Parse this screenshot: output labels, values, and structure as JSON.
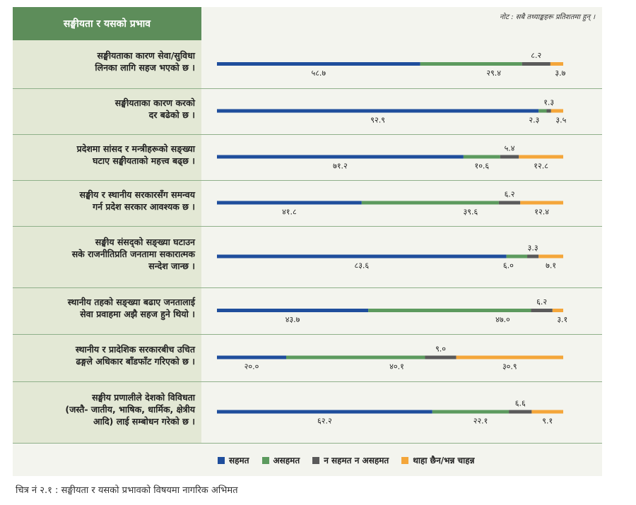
{
  "header": {
    "title": "सङ्घीयता र यसको प्रभाव"
  },
  "note": "नोट : सबै तथ्याङ्कहरू प्रतिशतमा हुन् ।",
  "caption": "चित्र नं २.१ : सङ्घीयता र यसको प्रभावको विषयमा नागरिक अभिमत",
  "legend": [
    {
      "label": "सहमत",
      "color": "#1f4e9c"
    },
    {
      "label": "असहमत",
      "color": "#5c9a5e"
    },
    {
      "label": "न सहमत न असहमत",
      "color": "#5a5a5a"
    },
    {
      "label": "थाहा छैन/भन्न चाहन्न",
      "color": "#f4a63a"
    }
  ],
  "chart_data": {
    "type": "bar",
    "orientation": "horizontal",
    "stacked": true,
    "unit": "%",
    "series_names": [
      "सहमत",
      "असहमत",
      "न सहमत न असहमत",
      "थाहा छैन/भन्न चाहन्न"
    ],
    "colors": [
      "#1f4e9c",
      "#5c9a5e",
      "#5a5a5a",
      "#f4a63a"
    ],
    "rows": [
      {
        "label": "सङ्घीयताका कारण सेवा/सुविधा\nलिनका लागि सहज भएको छ ।",
        "values": [
          58.7,
          29.4,
          8.2,
          3.7
        ],
        "value_labels": [
          "५८.७",
          "२९.४",
          "८.२",
          "३.७"
        ]
      },
      {
        "label": "सङ्घीयताका कारण करको\nदर बढेको छ ।",
        "values": [
          92.9,
          2.3,
          1.3,
          3.5
        ],
        "value_labels": [
          "९२.९",
          "२.३",
          "१.३",
          "३.५"
        ]
      },
      {
        "label": "प्रदेशमा सांसद र मन्त्रीहरूको सङ्ख्या\nघटाए सङ्घीयताको महत्त्व बढ्छ ।",
        "values": [
          71.2,
          10.6,
          5.4,
          12.8
        ],
        "value_labels": [
          "७१.२",
          "१०.६",
          "५.४",
          "१२.८"
        ]
      },
      {
        "label": "सङ्घीय र स्थानीय सरकारसँग समन्वय\nगर्न प्रदेश सरकार आवश्यक छ ।",
        "values": [
          41.8,
          39.6,
          6.2,
          12.4
        ],
        "value_labels": [
          "४१.८",
          "३९.६",
          "६.२",
          "१२.४"
        ]
      },
      {
        "label": "सङ्घीय संसद्को सङ्ख्या घटाउन\nसके राजनीतिप्रति जनतामा सकारात्मक\nसन्देश जान्छ ।",
        "values": [
          83.6,
          6.0,
          3.3,
          7.1
        ],
        "value_labels": [
          "८३.६",
          "६.०",
          "३.३",
          "७.१"
        ]
      },
      {
        "label": "स्थानीय तहको सङ्ख्या बढाए जनतालाई\nसेवा प्रवाहमा अझै सहज हुने थियो ।",
        "values": [
          43.7,
          47.0,
          6.2,
          3.1
        ],
        "value_labels": [
          "४३.७",
          "४७.०",
          "६.२",
          "३.१"
        ]
      },
      {
        "label": "स्थानीय र प्रादेशिक सरकारबीच उचित\nढङ्गले अधिकार बाँडफाँट गरिएको छ ।",
        "values": [
          20.0,
          40.1,
          9.0,
          30.9
        ],
        "value_labels": [
          "२०.०",
          "४०.१",
          "९.०",
          "३०.९"
        ]
      },
      {
        "label": "सङ्घीय प्रणालीले देशको विविधता\n(जस्तै- जातीय, भाषिक, धार्मिक, क्षेत्रीय\nआदि) लाई सम्बोधन गरेको छ ।",
        "values": [
          62.2,
          22.1,
          6.6,
          9.1
        ],
        "value_labels": [
          "६२.२",
          "२२.१",
          "६.६",
          "९.१"
        ]
      }
    ],
    "xlim": [
      0,
      100
    ]
  }
}
